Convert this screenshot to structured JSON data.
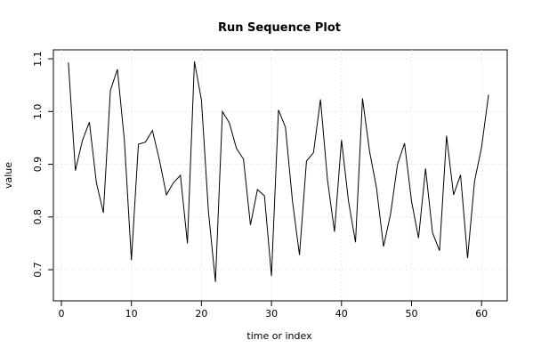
{
  "chart_data": {
    "type": "line",
    "title": "Run Sequence Plot",
    "xlabel": "time or index",
    "ylabel": "value",
    "x": [
      1,
      2,
      3,
      4,
      5,
      6,
      7,
      8,
      9,
      10,
      11,
      12,
      13,
      14,
      15,
      16,
      17,
      18,
      19,
      20,
      21,
      22,
      23,
      24,
      25,
      26,
      27,
      28,
      29,
      30,
      31,
      32,
      33,
      34,
      35,
      36,
      37,
      38,
      39,
      40,
      41,
      42,
      43,
      44,
      45,
      46,
      47,
      48,
      49,
      50,
      51,
      52,
      53,
      54,
      55,
      56,
      57,
      58,
      59,
      60,
      61
    ],
    "series": [
      {
        "color": "#000000",
        "values": [
          1.093,
          0.888,
          0.945,
          0.98,
          0.865,
          0.808,
          1.04,
          1.08,
          0.945,
          0.718,
          0.938,
          0.942,
          0.964,
          0.908,
          0.842,
          0.865,
          0.879,
          0.75,
          1.095,
          1.022,
          0.81,
          0.677,
          1.0,
          0.978,
          0.93,
          0.91,
          0.785,
          0.852,
          0.84,
          0.688,
          1.003,
          0.97,
          0.83,
          0.728,
          0.906,
          0.922,
          1.023,
          0.87,
          0.772,
          0.946,
          0.83,
          0.752,
          1.025,
          0.925,
          0.855,
          0.744,
          0.805,
          0.9,
          0.94,
          0.83,
          0.76,
          0.892,
          0.77,
          0.736,
          0.954,
          0.842,
          0.88,
          0.722,
          0.868,
          0.932,
          1.032
        ]
      }
    ],
    "xlim": [
      -1.14,
      63.66
    ],
    "ylim": [
      0.641,
      1.117
    ],
    "xticks": [
      0,
      10,
      20,
      30,
      40,
      50,
      60
    ],
    "yticks": [
      0.7,
      0.8,
      0.9,
      {
        "value": 1,
        "label": "1.0"
      },
      1.1
    ],
    "grid": true
  }
}
